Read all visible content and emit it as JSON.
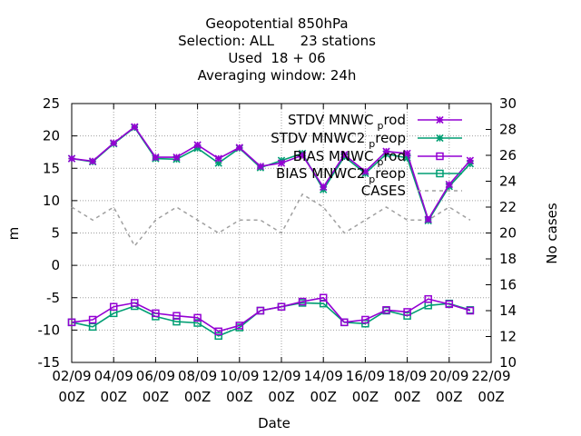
{
  "chart_data": {
    "type": "line",
    "title_lines": [
      "Geopotential 850hPa",
      "Selection: ALL      23 stations",
      "Used  18 + 06",
      "Averaging window: 24h"
    ],
    "xlabel": "Date",
    "ylabel": "m",
    "y2label": "No cases",
    "x_ticks": [
      {
        "top": "02/09",
        "bottom": "00Z"
      },
      {
        "top": "04/09",
        "bottom": "00Z"
      },
      {
        "top": "06/09",
        "bottom": "00Z"
      },
      {
        "top": "08/09",
        "bottom": "00Z"
      },
      {
        "top": "10/09",
        "bottom": "00Z"
      },
      {
        "top": "12/09",
        "bottom": "00Z"
      },
      {
        "top": "14/09",
        "bottom": "00Z"
      },
      {
        "top": "16/09",
        "bottom": "00Z"
      },
      {
        "top": "18/09",
        "bottom": "00Z"
      },
      {
        "top": "20/09",
        "bottom": "00Z"
      },
      {
        "top": "22/09",
        "bottom": "00Z"
      }
    ],
    "xlim": [
      0,
      20
    ],
    "ylim": [
      -15,
      25
    ],
    "y_ticks": [
      -15,
      -10,
      -5,
      0,
      5,
      10,
      15,
      20,
      25
    ],
    "y2lim": [
      10,
      30
    ],
    "y2_ticks": [
      10,
      12,
      14,
      16,
      18,
      20,
      22,
      24,
      26,
      28,
      30
    ],
    "grid": true,
    "legend_position": "top-right",
    "x": [
      0,
      1,
      2,
      3,
      4,
      5,
      6,
      7,
      8,
      9,
      10,
      11,
      12,
      13,
      14,
      15,
      16,
      17,
      18,
      19
    ],
    "series": [
      {
        "name": "STDV MNWC_prod",
        "name_main": "STDV MNWC",
        "name_sub": "p",
        "name_tail": "rod",
        "color": "#9400d3",
        "marker": "star",
        "axis": "y",
        "values": [
          16.5,
          16.1,
          18.9,
          21.4,
          16.7,
          16.7,
          18.6,
          16.5,
          18.2,
          15.3,
          15.8,
          17.0,
          12.1,
          17.1,
          14.5,
          17.6,
          17.3,
          7.1,
          12.5,
          16.2
        ]
      },
      {
        "name": "STDV MNWC2_preop",
        "name_main": "STDV MNWC2",
        "name_sub": "p",
        "name_tail": "reop",
        "color": "#009e73",
        "marker": "star",
        "axis": "y",
        "values": [
          16.5,
          16.0,
          18.8,
          21.3,
          16.5,
          16.4,
          18.1,
          15.8,
          18.1,
          15.1,
          16.2,
          17.3,
          11.7,
          16.8,
          14.2,
          17.2,
          16.6,
          6.9,
          12.2,
          15.7
        ]
      },
      {
        "name": "BIAS MNWC_prod",
        "name_main": "BIAS MNWC",
        "name_sub": "p",
        "name_tail": "rod",
        "color": "#9400d3",
        "marker": "square",
        "axis": "y",
        "values": [
          -8.8,
          -8.4,
          -6.4,
          -5.8,
          -7.4,
          -7.8,
          -8.1,
          -10.2,
          -9.3,
          -7.0,
          -6.4,
          -5.6,
          -5.0,
          -8.8,
          -8.4,
          -6.9,
          -7.2,
          -5.2,
          -6.0,
          -7.0
        ]
      },
      {
        "name": "BIAS MNWC2_preop",
        "name_main": "BIAS MNWC2",
        "name_sub": "p",
        "name_tail": "reop",
        "color": "#009e73",
        "marker": "square",
        "axis": "y",
        "values": [
          -8.8,
          -9.5,
          -7.4,
          -6.3,
          -7.9,
          -8.7,
          -8.9,
          -10.9,
          -9.6,
          -7.0,
          -6.4,
          -5.8,
          -5.9,
          -8.8,
          -9.0,
          -7.0,
          -7.8,
          -6.2,
          -5.9,
          -6.9
        ]
      },
      {
        "name": "CASES",
        "name_main": "CASES",
        "name_sub": "",
        "name_tail": "",
        "color": "#a0a0a0",
        "marker": "none",
        "dashed": true,
        "axis": "y2",
        "values": [
          22,
          21,
          22,
          19,
          21,
          22,
          21,
          20,
          21,
          21,
          20,
          23,
          22,
          20,
          21,
          22,
          21,
          21,
          22,
          21
        ]
      }
    ]
  }
}
